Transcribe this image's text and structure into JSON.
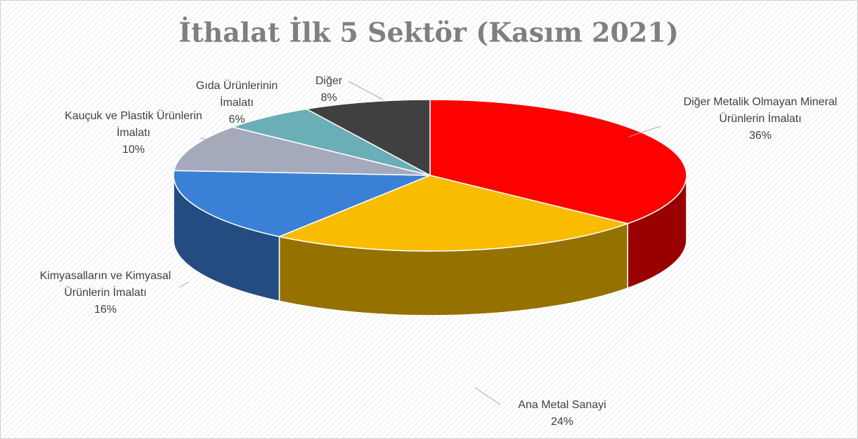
{
  "chart_data": {
    "type": "pie",
    "title": "İthalat İlk 5 Sektör (Kasım 2021)",
    "categories": [
      "Diğer Metalik Olmayan Mineral Ürünlerin İmalatı",
      "Ana Metal Sanayi",
      "Kimyasalların ve Kimyasal Ürünlerin İmalatı",
      "Kauçuk ve Plastik Ürünlerin İmalatı",
      "Gıda Ürünlerinin İmalatı",
      "Diğer"
    ],
    "values": [
      36,
      24,
      16,
      10,
      6,
      8
    ],
    "value_labels": [
      "36%",
      "24%",
      "16%",
      "10%",
      "6%",
      "8%"
    ],
    "colors": [
      "#ff0000",
      "#f9bc00",
      "#3a80d6",
      "#a4aabb",
      "#6aaeb8",
      "#404040"
    ]
  }
}
